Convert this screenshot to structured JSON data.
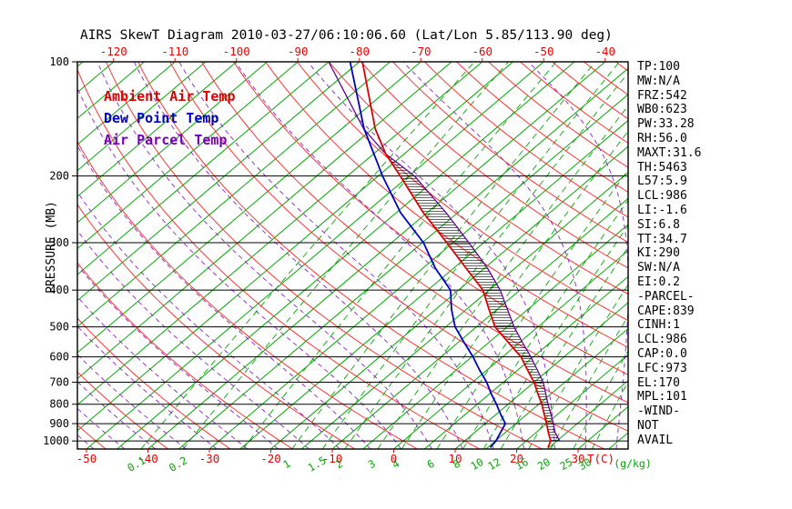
{
  "title": "AIRS SkewT Diagram 2010-03-27/06:10:06.60 (Lat/Lon 5.85/113.90 deg)",
  "legend": [
    {
      "label": "Ambient Air Temp",
      "color": "#dd0000"
    },
    {
      "label": "Dew Point Temp",
      "color": "#0000cc"
    },
    {
      "label": "Air Parcel Temp",
      "color": "#7700bb"
    }
  ],
  "stats_panel": [
    "TP:100",
    "MW:N/A",
    "FRZ:542",
    "WB0:623",
    "PW:33.28",
    "RH:56.0",
    "MAXT:31.6",
    "TH:5463",
    "L57:5.9",
    "LCL:986",
    "LI:-1.6",
    "SI:6.8",
    "TT:34.7",
    "KI:290",
    "SW:N/A",
    "EI:0.2",
    "-PARCEL-",
    "CAPE:839",
    "CINH:1",
    "LCL:986",
    "CAP:0.0",
    "LFC:973",
    "EL:170",
    "MPL:101",
    "-WIND-",
    "NOT",
    "AVAIL"
  ],
  "axes": {
    "pressure_label": "PRESSURE (MB)",
    "pressure_ticks_mb": [
      100,
      200,
      300,
      400,
      500,
      600,
      700,
      800,
      900,
      1000
    ],
    "pressure_range_mb": [
      100,
      1050
    ],
    "top_temp_ticks_c": [
      -120,
      -110,
      -100,
      -90,
      -80,
      -70,
      -60,
      -50,
      -40
    ],
    "bottom_temp_ticks_c": [
      -50,
      -40,
      -30,
      -20,
      -10,
      0,
      10,
      20,
      30
    ],
    "temp_unit_label": "T(C)",
    "mixing_ratio_labels_gkg": [
      0.1,
      0.2,
      1,
      1.5,
      2,
      3,
      4,
      6,
      8,
      10,
      12,
      16,
      20,
      25,
      30
    ],
    "mixing_ratio_unit_label": "(g/kg)"
  },
  "background_lines": {
    "isotherms_c": {
      "min": -130,
      "max": 40,
      "step": 5
    },
    "dry_adiabats_theta_c": {
      "min": -50,
      "max": 185,
      "step": 10
    },
    "moist_adiabats_thetaw_c": {
      "min": -55,
      "max": 40,
      "step": 5
    },
    "mixing_ratio_lines_gkg": [
      0.1,
      0.2,
      0.5,
      1,
      1.5,
      2,
      3,
      4,
      6,
      8,
      10,
      12,
      16,
      20,
      25,
      30
    ]
  },
  "colors": {
    "isotherm": "#00a800",
    "mixing_ratio": "#00a800",
    "dry_adiabat": "#ff3333",
    "moist_adiabat": "#8822cc",
    "ambient": "#dd0000",
    "dewpoint": "#0000cc",
    "parcel": "#660099",
    "axis_text_temp": "#ee0000",
    "axis_text_mixing": "#00a800",
    "text": "#000000"
  },
  "chart_data": {
    "type": "line",
    "title": "AIRS SkewT Diagram 2010-03-27/06:10:06.60 (Lat/Lon 5.85/113.90 deg)",
    "x_axis_note": "Temperature (C), skewed 45 deg; top scale -120..-40 at 100 MB, bottom scale -50..30 at 1050 MB",
    "y_axis_note": "Pressure (MB), logarithmic, 100 (top) to 1050 (bottom)",
    "series": [
      {
        "name": "Ambient Air Temp",
        "pressure_mb": [
          1040,
          1000,
          950,
          900,
          850,
          800,
          750,
          700,
          650,
          600,
          550,
          500,
          450,
          400,
          350,
          300,
          250,
          200,
          175,
          150,
          100
        ],
        "temp_c": [
          24.8,
          24,
          22,
          20,
          17.8,
          15.5,
          12.8,
          10,
          6.6,
          3,
          -1.8,
          -7,
          -11.3,
          -16,
          -23,
          -31,
          -40.6,
          -51.4,
          -58,
          -64.6,
          -79.5
        ]
      },
      {
        "name": "Dew Point Temp",
        "pressure_mb": [
          1040,
          1000,
          950,
          900,
          850,
          800,
          750,
          700,
          650,
          600,
          550,
          500,
          450,
          400,
          350,
          300,
          250,
          200,
          150,
          100
        ],
        "temp_c": [
          15.4,
          15.1,
          14.2,
          13.3,
          10.7,
          8.1,
          5.2,
          2.3,
          -1.2,
          -4.8,
          -9,
          -13.5,
          -17.4,
          -21.3,
          -28,
          -34.8,
          -44.3,
          -54.3,
          -66.4,
          -81.5
        ]
      },
      {
        "name": "Air Parcel Temp",
        "pressure_mb": [
          1000,
          950,
          900,
          850,
          800,
          750,
          700,
          650,
          600,
          550,
          500,
          450,
          400,
          350,
          300,
          250,
          200,
          175,
          150,
          100
        ],
        "temp_c": [
          25.5,
          23.1,
          21.1,
          18.9,
          16.5,
          14.1,
          11.5,
          8.2,
          4.6,
          0.5,
          -3.9,
          -8.3,
          -13.2,
          -19.5,
          -27.4,
          -36.9,
          -49.1,
          -58,
          -66.5,
          -85
        ]
      }
    ],
    "hatch_between": [
      "Air Parcel Temp",
      "Ambient Air Temp"
    ],
    "hatch_pressure_range_mb": [
      1000,
      175
    ]
  }
}
